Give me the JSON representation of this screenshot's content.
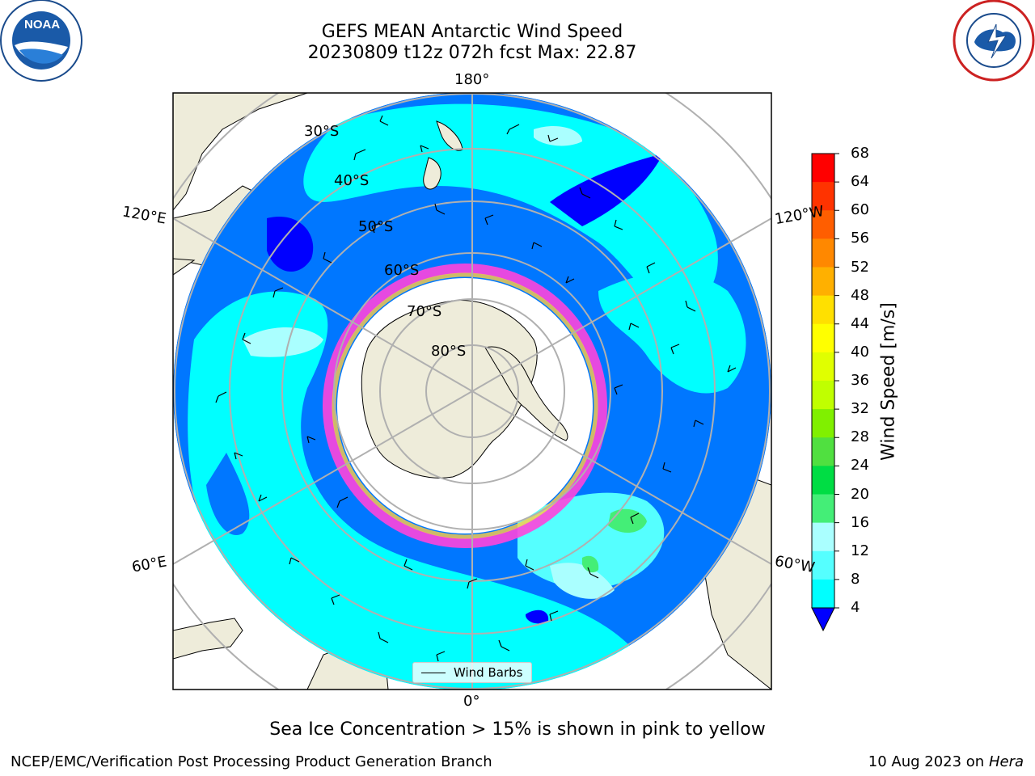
{
  "title_line1": "GEFS MEAN Antarctic Wind Speed",
  "title_line2": "20230809 t12z 072h fcst   Max: 22.87",
  "lon_labels": {
    "top": "180°",
    "bottom": "0°",
    "left_upper": "120°E",
    "left_lower": "60°E",
    "right_upper": "120°W",
    "right_lower": "60°W"
  },
  "lat_labels": [
    "30°S",
    "40°S",
    "50°S",
    "60°S",
    "70°S",
    "80°S"
  ],
  "legend": {
    "label": "Wind Barbs"
  },
  "colorbar": {
    "label": "Wind Speed [m/s]",
    "ticks": [
      "68",
      "64",
      "60",
      "56",
      "52",
      "48",
      "44",
      "40",
      "36",
      "32",
      "28",
      "24",
      "20",
      "16",
      "12",
      "8",
      "4"
    ],
    "colors": [
      "#ff0000",
      "#ff3300",
      "#ff5e00",
      "#ff8800",
      "#ffb000",
      "#ffe000",
      "#ffff00",
      "#e0ff00",
      "#c0ff00",
      "#80f000",
      "#50e040",
      "#00dd44",
      "#44ee77",
      "#aaffff",
      "#55ffff",
      "#00ffff",
      "#0077ff"
    ],
    "extend_color": "#0000ff"
  },
  "note": "Sea Ice Concentration > 15% is shown in pink to yellow",
  "footer_left": "NCEP/EMC/Verification Post Processing Product Generation Branch",
  "footer_date": "10 Aug 2023 on",
  "footer_machine": "Hera",
  "logos": {
    "left": "NOAA",
    "right": "NATIONAL WEATHER SERVICE"
  }
}
